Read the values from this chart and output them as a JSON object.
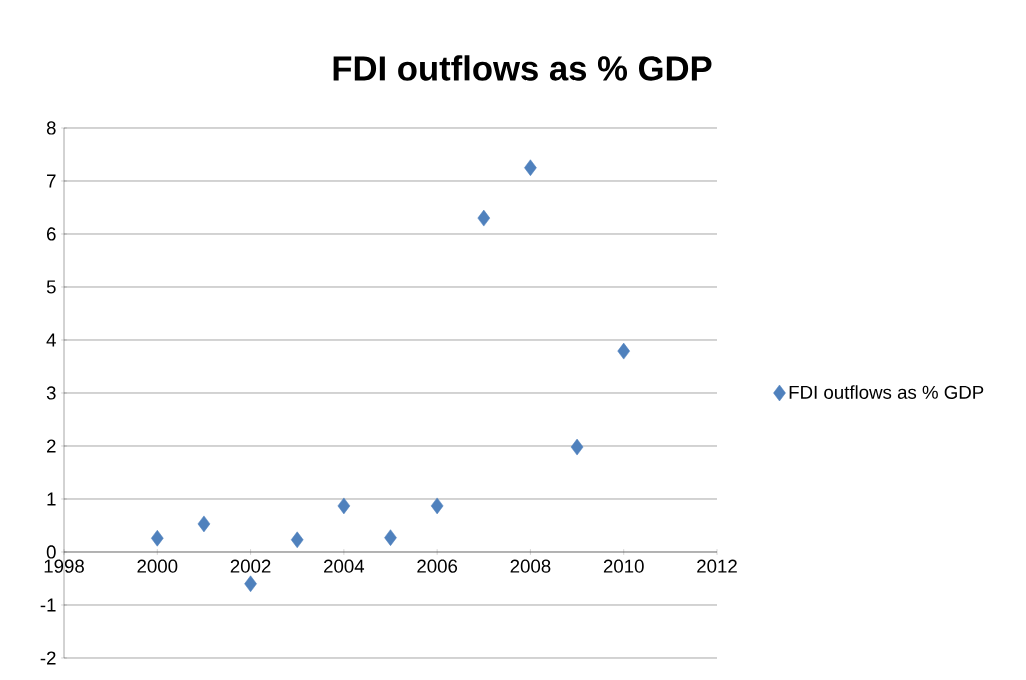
{
  "chart_data": {
    "type": "scatter",
    "title": "FDI outflows as % GDP",
    "x": [
      2000,
      2001,
      2002,
      2003,
      2004,
      2005,
      2006,
      2007,
      2008,
      2009,
      2010
    ],
    "series": [
      {
        "name": "FDI outflows as % GDP",
        "color": "#4f81bd",
        "values": [
          0.26,
          0.53,
          -0.6,
          0.23,
          0.87,
          0.27,
          0.87,
          6.3,
          7.25,
          1.98,
          3.79
        ]
      }
    ],
    "xlim": [
      1998,
      2012
    ],
    "xticks": [
      1998,
      2000,
      2002,
      2004,
      2006,
      2008,
      2010,
      2012
    ],
    "ylim": [
      -2,
      8
    ],
    "yticks": [
      -2,
      -1,
      0,
      1,
      2,
      3,
      4,
      5,
      6,
      7,
      8
    ],
    "grid": "y",
    "legend": "right",
    "marker": "diamond"
  }
}
